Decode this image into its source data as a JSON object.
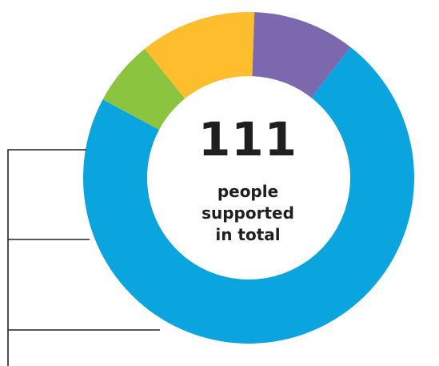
{
  "chart_data": {
    "type": "pie",
    "style": "donut",
    "center_value": "111",
    "center_caption": [
      "people",
      "supported",
      "in total"
    ],
    "segments": [
      {
        "value": 79.5,
        "color": "#0aa5df"
      },
      {
        "value": 7.0,
        "color": "#8bc53f"
      },
      {
        "value": 12.5,
        "color": "#fdbd2c"
      },
      {
        "value": 11.0,
        "color": "#7c68ad"
      }
    ],
    "start_angle_deg": -52,
    "total_percent": 110,
    "legend": "leader-lines-left"
  }
}
